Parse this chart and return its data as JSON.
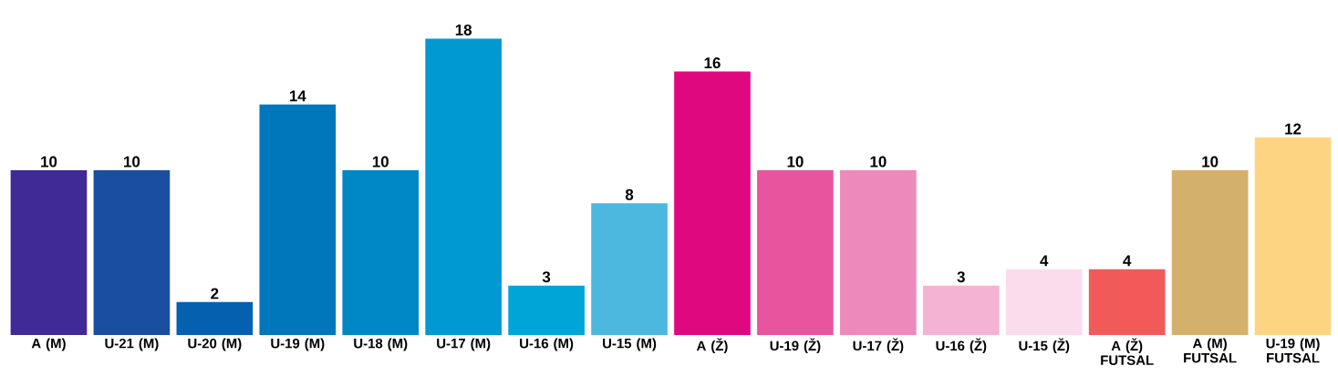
{
  "chart_data": {
    "type": "bar",
    "categories": [
      "A (M)",
      "U-21 (M)",
      "U-20 (M)",
      "U-19 (M)",
      "U-18 (M)",
      "U-17 (M)",
      "U-16 (M)",
      "U-15 (M)",
      "A (Ž)",
      "U-19 (Ž)",
      "U-17 (Ž)",
      "U-16 (Ž)",
      "U-15 (Ž)",
      "A (Ž) FUTSAL",
      "A (M) FUTSAL",
      "U-19 (M) FUTSAL"
    ],
    "values": [
      10,
      10,
      2,
      14,
      10,
      18,
      3,
      8,
      16,
      10,
      10,
      3,
      4,
      4,
      10,
      12
    ],
    "colors": [
      "#3f2a96",
      "#1a4fa0",
      "#0660b0",
      "#0077bb",
      "#0088c6",
      "#0099d2",
      "#00a5d8",
      "#4cb8e0",
      "#e0087f",
      "#e6559e",
      "#ee8abb",
      "#f4b3d3",
      "#fbdcec",
      "#f25a5a",
      "#d4b16a",
      "#fdd582"
    ],
    "data_labels": true
  }
}
